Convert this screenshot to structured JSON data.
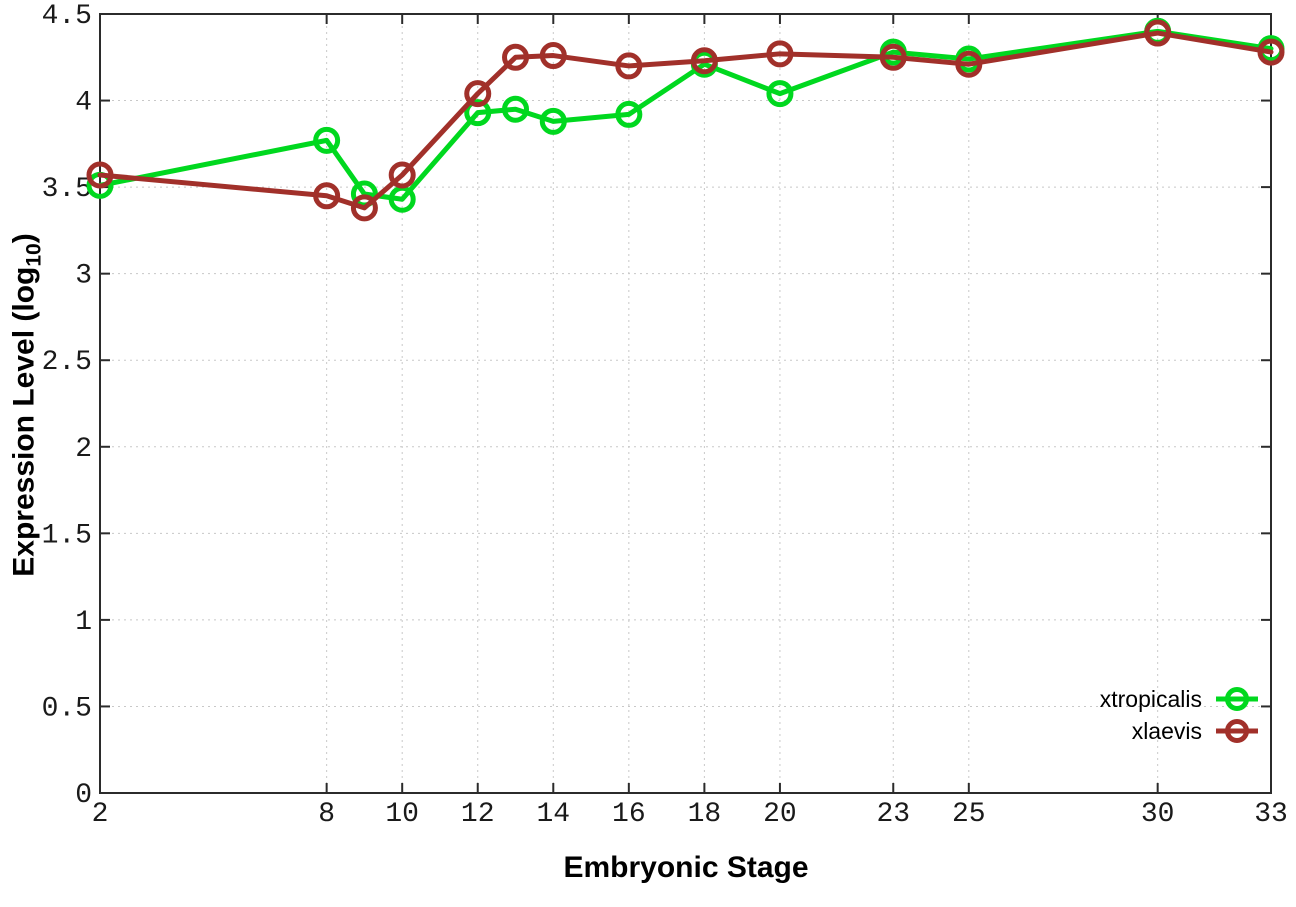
{
  "chart_data": {
    "type": "line",
    "title": "",
    "xlabel": "Embryonic Stage",
    "ylabel": "Expression Level (log10)",
    "ylabel_parts": {
      "base": "Expression Level (log",
      "sub": "10",
      "close": ")"
    },
    "xlim": [
      2,
      33
    ],
    "ylim": [
      0,
      4.5
    ],
    "x": [
      2,
      8,
      9,
      10,
      12,
      13,
      14,
      16,
      18,
      20,
      23,
      25,
      30,
      33
    ],
    "xticks": [
      2,
      8,
      10,
      12,
      14,
      16,
      18,
      20,
      23,
      25,
      30,
      33
    ],
    "yticks": [
      0,
      0.5,
      1,
      1.5,
      2,
      2.5,
      3,
      3.5,
      4,
      4.5
    ],
    "grid": true,
    "legend_position": "bottom-right",
    "series": [
      {
        "name": "xtropicalis",
        "color": "#00d81f",
        "values": [
          3.51,
          3.77,
          3.46,
          3.43,
          3.93,
          3.95,
          3.88,
          3.92,
          4.21,
          4.04,
          4.28,
          4.24,
          4.4,
          4.3
        ]
      },
      {
        "name": "xlaevis",
        "color": "#a1302a",
        "values": [
          3.57,
          3.45,
          3.38,
          3.57,
          4.04,
          4.25,
          4.26,
          4.2,
          4.23,
          4.27,
          4.25,
          4.21,
          4.39,
          4.28
        ]
      }
    ]
  },
  "style": {
    "border_color": "#2b2b2b",
    "grid_color": "#c8c8c8",
    "tick_label_color": "#1a1a1a",
    "background": "#ffffff"
  }
}
